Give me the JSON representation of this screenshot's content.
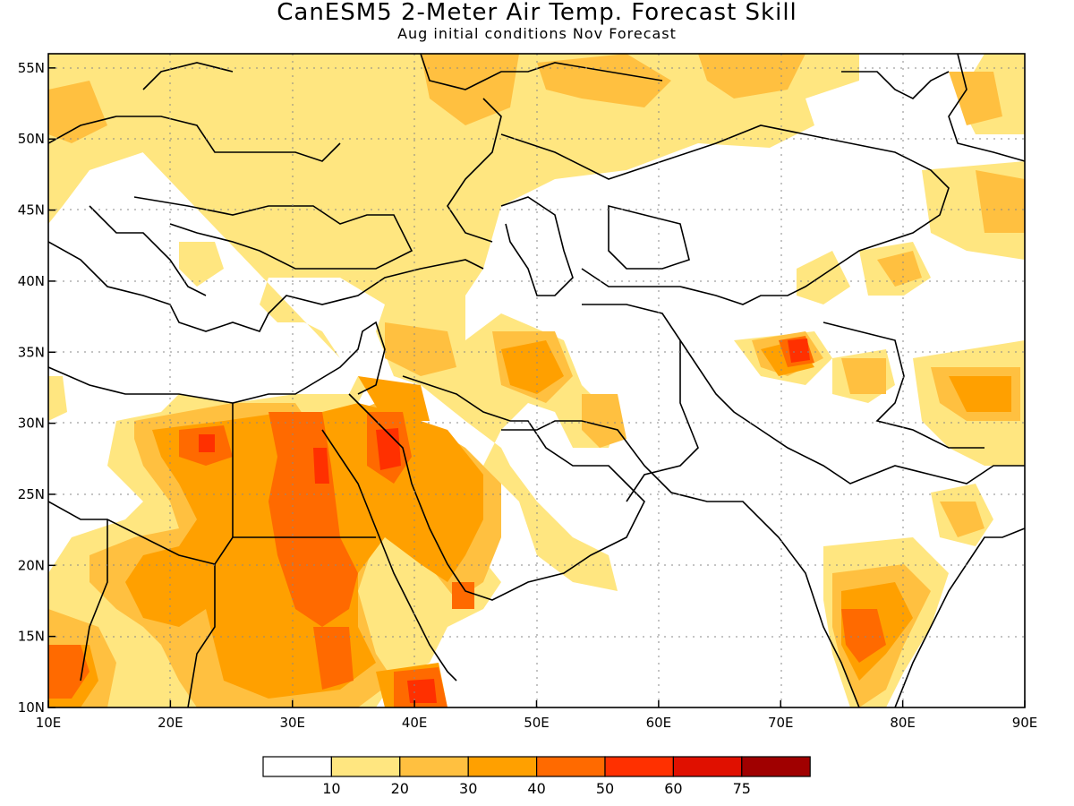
{
  "title": "CanESM5 2-Meter Air Temp. Forecast Skill",
  "subtitle": "Aug initial conditions  Nov Forecast",
  "axes": {
    "lon_ticks": [
      "10E",
      "20E",
      "30E",
      "40E",
      "50E",
      "60E",
      "70E",
      "80E",
      "90E"
    ],
    "lat_ticks": [
      "10N",
      "15N",
      "20N",
      "25N",
      "30N",
      "35N",
      "40N",
      "45N",
      "50N",
      "55N"
    ],
    "lon_range": [
      10,
      90
    ],
    "lat_range": [
      10,
      56
    ],
    "grid": "dotted"
  },
  "legend": {
    "labels": [
      "10",
      "20",
      "30",
      "40",
      "50",
      "60",
      "75"
    ],
    "colors": [
      "#ffffff",
      "#ffe680",
      "#ffc040",
      "#ffa000",
      "#ff6a00",
      "#ff3000",
      "#e01000",
      "#a00000"
    ]
  }
}
